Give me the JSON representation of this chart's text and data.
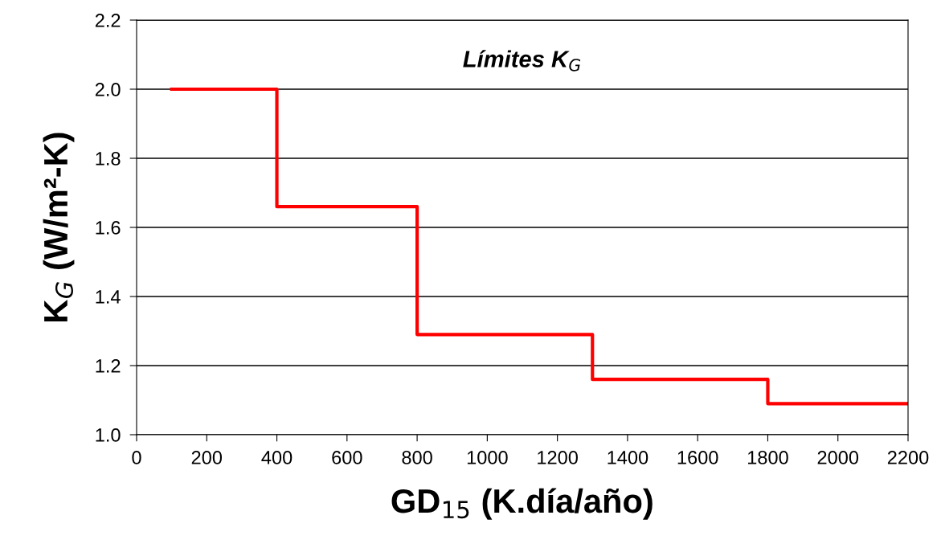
{
  "chart_data": {
    "type": "step",
    "title": "Límites K$_{G}$",
    "xlabel": "GD$_{15}$ (K.día/año)",
    "ylabel": "K$_{G}$ (W/m²-K)",
    "x": [
      100,
      400,
      800,
      1300,
      1800,
      2200
    ],
    "series": [
      {
        "color": "#ff0000",
        "values": [
          2.0,
          1.66,
          1.29,
          1.16,
          1.09,
          1.09
        ]
      }
    ],
    "xlim": [
      0,
      2200
    ],
    "xticks": [
      0,
      200,
      400,
      600,
      800,
      1000,
      1200,
      1400,
      1600,
      1800,
      2000,
      2200
    ],
    "ylim": [
      1.0,
      2.2
    ],
    "yticks": [
      {
        "value": 1.0,
        "label": "1.0"
      },
      {
        "value": 1.2,
        "label": "1.2"
      },
      {
        "value": 1.4,
        "label": "1.4"
      },
      {
        "value": 1.6,
        "label": "1.6"
      },
      {
        "value": 1.8,
        "label": "1.8"
      },
      {
        "value": 2.0,
        "label": "2.0"
      },
      {
        "value": 2.2,
        "label": "2.2"
      }
    ],
    "grid": "y",
    "line_style": "solid",
    "marker": "none"
  }
}
